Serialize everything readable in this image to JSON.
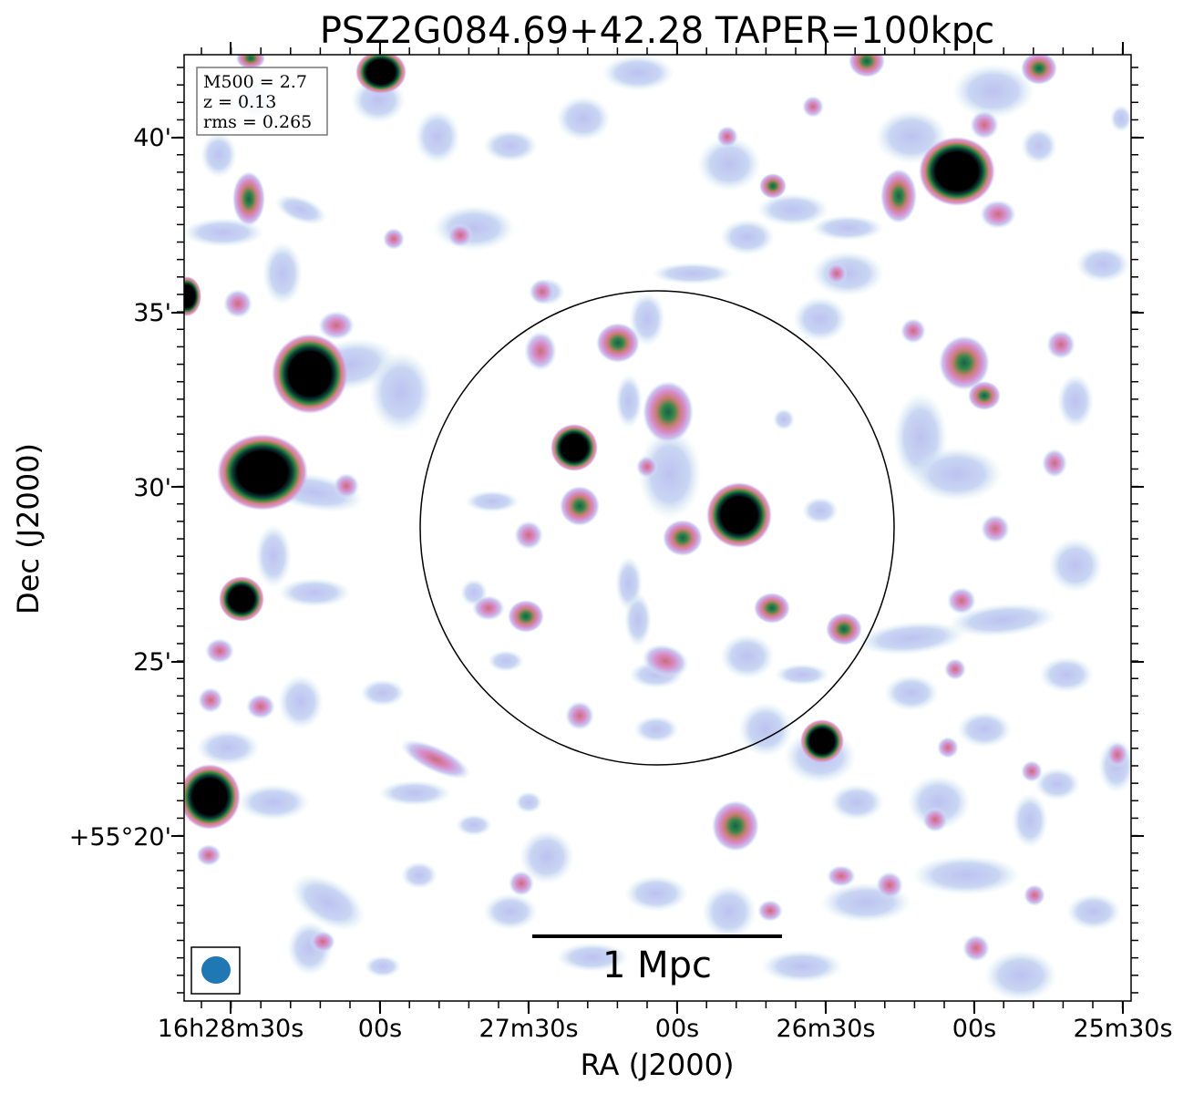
{
  "figure": {
    "title": "PSZ2G084.69+42.28 TAPER=100kpc",
    "xlabel": "RA (J2000)",
    "ylabel": "Dec (J2000)",
    "x_ticks": [
      "16h28m30s",
      "00s",
      "27m30s",
      "00s",
      "26m30s",
      "00s",
      "25m30s"
    ],
    "y_ticks": [
      "40'",
      "35'",
      "30'",
      "25'",
      "+55°20'"
    ],
    "info_box": {
      "line1": "M500 = 2.7",
      "line2": "z = 0.13",
      "line3": "rms = 0.265"
    },
    "scale_bar_label": "1 Mpc",
    "beam_color": "#1f77b4"
  }
}
